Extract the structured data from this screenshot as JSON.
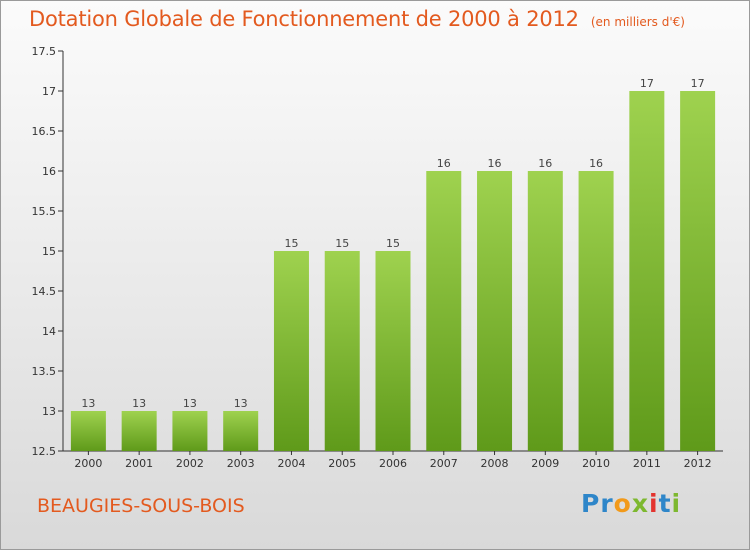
{
  "header": {
    "title": "Dotation Globale de Fonctionnement de 2000 à 2012",
    "subtitle": "(en milliers d'€)"
  },
  "footer": {
    "commune": "BEAUGIES-SOUS-BOIS",
    "logo": {
      "text": "Proxiti",
      "letters": [
        "P",
        "r",
        "o",
        "x",
        "i",
        "t",
        "i"
      ]
    }
  },
  "colors": {
    "title": "#e35a1f",
    "bar_top": "#9fd24f",
    "bar_bottom": "#5f9a1a",
    "axis": "#333333"
  },
  "chart_data": {
    "type": "bar",
    "title": "Dotation Globale de Fonctionnement de 2000 à 2012",
    "subtitle": "(en milliers d'€)",
    "categories": [
      "2000",
      "2001",
      "2002",
      "2003",
      "2004",
      "2005",
      "2006",
      "2007",
      "2008",
      "2009",
      "2010",
      "2011",
      "2012"
    ],
    "values": [
      13,
      13,
      13,
      13,
      15,
      15,
      15,
      16,
      16,
      16,
      16,
      17,
      17
    ],
    "ylim": [
      12.5,
      17.5
    ],
    "yticks": [
      "12.5",
      "13",
      "13.5",
      "14",
      "14.5",
      "15",
      "15.5",
      "16",
      "16.5",
      "17",
      "17.5"
    ],
    "grid": false,
    "xlabel": "",
    "ylabel": ""
  }
}
